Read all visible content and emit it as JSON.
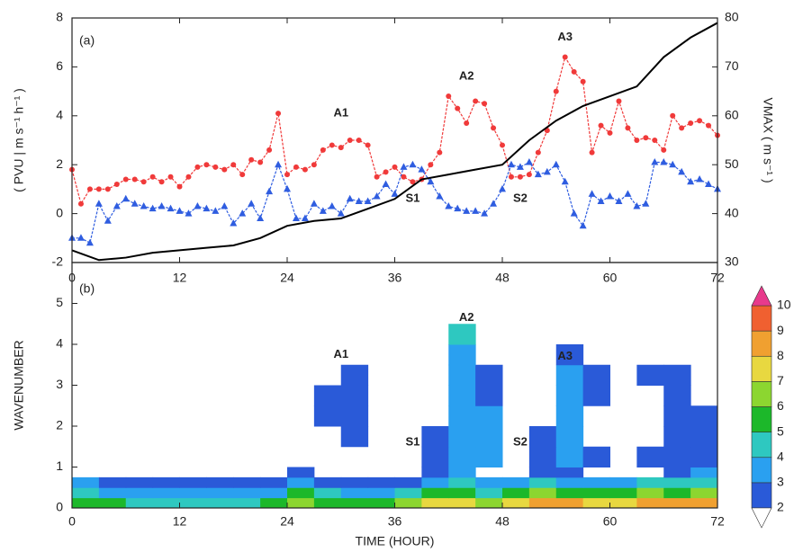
{
  "chart_data": [
    {
      "type": "line",
      "panel_label": "(a)",
      "ylabel": "( PVU | m s⁻¹ h⁻¹ )",
      "y2label": "VMAX  ( m s⁻¹ )",
      "x": [
        0,
        1,
        2,
        3,
        4,
        5,
        6,
        7,
        8,
        9,
        10,
        11,
        12,
        13,
        14,
        15,
        16,
        17,
        18,
        19,
        20,
        21,
        22,
        23,
        24,
        25,
        26,
        27,
        28,
        29,
        30,
        31,
        32,
        33,
        34,
        35,
        36,
        37,
        38,
        39,
        40,
        41,
        42,
        43,
        44,
        45,
        46,
        47,
        48,
        49,
        50,
        51,
        52,
        53,
        54,
        55,
        56,
        57,
        58,
        59,
        60,
        61,
        62,
        63,
        64,
        65,
        66,
        67,
        68,
        69,
        70,
        71,
        72
      ],
      "xlim": [
        0,
        72
      ],
      "xticks": [
        0,
        12,
        24,
        36,
        48,
        60,
        72
      ],
      "ylim": [
        -2,
        8
      ],
      "yticks": [
        -2,
        0,
        2,
        4,
        6,
        8
      ],
      "y2lim": [
        30,
        80
      ],
      "y2ticks": [
        30,
        40,
        50,
        60,
        70,
        80
      ],
      "series": [
        {
          "color": "#f03a3a",
          "marker": "circle",
          "values": [
            1.8,
            0.4,
            1.0,
            1.0,
            1.0,
            1.2,
            1.4,
            1.4,
            1.3,
            1.5,
            1.3,
            1.5,
            1.1,
            1.5,
            1.9,
            2.0,
            1.9,
            1.8,
            2.0,
            1.6,
            2.2,
            2.1,
            2.6,
            4.1,
            1.6,
            1.9,
            1.8,
            2.0,
            2.6,
            2.8,
            2.7,
            3.0,
            3.0,
            2.8,
            1.5,
            1.7,
            1.9,
            1.5,
            1.3,
            1.4,
            2.0,
            2.5,
            4.8,
            4.3,
            3.7,
            4.6,
            4.5,
            3.5,
            2.8,
            1.5,
            1.5,
            1.6,
            2.5,
            3.4,
            5.0,
            6.4,
            5.8,
            5.4,
            2.5,
            3.6,
            3.3,
            4.6,
            3.5,
            3.0,
            3.1,
            3.0,
            2.6,
            4.0,
            3.5,
            3.7,
            3.8,
            3.6,
            3.2
          ]
        },
        {
          "color": "#2f5de0",
          "marker": "triangle",
          "values": [
            -1.0,
            -1.0,
            -1.2,
            0.4,
            -0.3,
            0.3,
            0.6,
            0.4,
            0.3,
            0.2,
            0.3,
            0.2,
            0.1,
            0.0,
            0.3,
            0.2,
            0.1,
            0.3,
            -0.4,
            0.0,
            0.4,
            -0.2,
            0.9,
            2.0,
            1.0,
            -0.2,
            -0.2,
            0.4,
            0.1,
            0.3,
            0.0,
            0.6,
            0.5,
            0.5,
            0.7,
            1.2,
            0.8,
            1.9,
            2.0,
            1.8,
            1.3,
            0.7,
            0.3,
            0.2,
            0.1,
            0.1,
            0.0,
            0.4,
            1.0,
            2.0,
            1.9,
            2.1,
            1.6,
            1.7,
            2.0,
            1.3,
            0.0,
            -0.5,
            0.8,
            0.5,
            0.7,
            0.5,
            0.8,
            0.3,
            0.4,
            2.1,
            2.1,
            2.0,
            1.7,
            1.3,
            1.4,
            1.2,
            1.0
          ]
        },
        {
          "color": "#000000",
          "axis": "y2",
          "x": [
            0,
            3,
            6,
            9,
            12,
            15,
            18,
            21,
            24,
            27,
            30,
            33,
            36,
            39,
            42,
            45,
            48,
            51,
            54,
            57,
            60,
            63,
            66,
            69,
            72
          ],
          "values": [
            32.5,
            30.5,
            31,
            32,
            32.5,
            33,
            33.5,
            35,
            37.5,
            38.5,
            39,
            41,
            43,
            47,
            48,
            49,
            50,
            55,
            59,
            62,
            64,
            66,
            72,
            76,
            79
          ]
        }
      ],
      "annotations": [
        {
          "text": "A1",
          "x": 30,
          "y": 4.1
        },
        {
          "text": "A2",
          "x": 44,
          "y": 5.6
        },
        {
          "text": "A3",
          "x": 55,
          "y": 7.2
        },
        {
          "text": "S1",
          "x": 38,
          "y": 0.6
        },
        {
          "text": "S2",
          "x": 50,
          "y": 0.6
        }
      ]
    },
    {
      "type": "contour",
      "panel_label": "(b)",
      "xlabel": "TIME (HOUR)",
      "ylabel": "WAVENUMBER",
      "xlim": [
        0,
        72
      ],
      "xticks": [
        0,
        12,
        24,
        36,
        48,
        60,
        72
      ],
      "ylim": [
        0,
        6
      ],
      "yticks": [
        0,
        1,
        2,
        3,
        4,
        5
      ],
      "x_edges": [
        0,
        3,
        6,
        9,
        12,
        15,
        18,
        21,
        24,
        27,
        30,
        33,
        36,
        39,
        42,
        45,
        48,
        51,
        54,
        57,
        60,
        63,
        66,
        69,
        72
      ],
      "y_edges": [
        0,
        0.25,
        0.5,
        0.75,
        1,
        1.5,
        2,
        2.5,
        3,
        3.5,
        4,
        4.5
      ],
      "z": [
        [
          5,
          5,
          4,
          4,
          4,
          4,
          4,
          5,
          6,
          5,
          5,
          5,
          6,
          7,
          7,
          6,
          7,
          8,
          8,
          7,
          7,
          8,
          8,
          8
        ],
        [
          4,
          3,
          3,
          3,
          3,
          3,
          3,
          3,
          5,
          4,
          3,
          3,
          4,
          5,
          5,
          4,
          5,
          6,
          5,
          5,
          5,
          6,
          5,
          6
        ],
        [
          3,
          2,
          2,
          2,
          2,
          2,
          2,
          2,
          3,
          2,
          2,
          2,
          2,
          3,
          4,
          3,
          3,
          4,
          3,
          3,
          3,
          4,
          4,
          4
        ],
        [
          null,
          null,
          null,
          null,
          null,
          null,
          null,
          null,
          2,
          null,
          null,
          null,
          null,
          2,
          3,
          null,
          null,
          2,
          2,
          null,
          null,
          null,
          2,
          3
        ],
        [
          null,
          null,
          null,
          null,
          null,
          null,
          null,
          null,
          null,
          null,
          null,
          null,
          null,
          2,
          3,
          3,
          null,
          2,
          3,
          2,
          null,
          2,
          2,
          2
        ],
        [
          null,
          null,
          null,
          null,
          null,
          null,
          null,
          null,
          null,
          null,
          2,
          null,
          null,
          2,
          3,
          3,
          null,
          2,
          3,
          null,
          null,
          null,
          2,
          2
        ],
        [
          null,
          null,
          null,
          null,
          null,
          null,
          null,
          null,
          null,
          2,
          2,
          null,
          null,
          null,
          3,
          3,
          null,
          null,
          3,
          null,
          null,
          null,
          2,
          2
        ],
        [
          null,
          null,
          null,
          null,
          null,
          null,
          null,
          null,
          null,
          2,
          2,
          null,
          null,
          null,
          3,
          2,
          null,
          null,
          3,
          2,
          null,
          null,
          2,
          null
        ],
        [
          null,
          null,
          null,
          null,
          null,
          null,
          null,
          null,
          null,
          null,
          2,
          null,
          null,
          null,
          3,
          2,
          null,
          null,
          3,
          2,
          null,
          2,
          2,
          null
        ],
        [
          null,
          null,
          null,
          null,
          null,
          null,
          null,
          null,
          null,
          null,
          null,
          null,
          null,
          null,
          3,
          null,
          null,
          null,
          2,
          null,
          null,
          null,
          null,
          null
        ],
        [
          null,
          null,
          null,
          null,
          null,
          null,
          null,
          null,
          null,
          null,
          null,
          null,
          null,
          null,
          4,
          null,
          null,
          null,
          null,
          null,
          null,
          null,
          null,
          null
        ]
      ],
      "colorbar": {
        "levels": [
          2,
          3,
          4,
          5,
          6,
          7,
          8,
          9,
          10
        ],
        "colors": [
          "#2a5ad8",
          "#2aa0f0",
          "#2ec8c0",
          "#1cb82a",
          "#8cd630",
          "#e8d840",
          "#f0a030",
          "#f06030",
          "#e83a8c"
        ]
      },
      "annotations": [
        {
          "text": "A1",
          "x": 30,
          "y": 3.75
        },
        {
          "text": "A2",
          "x": 44,
          "y": 4.65
        },
        {
          "text": "A3",
          "x": 55,
          "y": 3.7
        },
        {
          "text": "S1",
          "x": 38,
          "y": 1.6
        },
        {
          "text": "S2",
          "x": 50,
          "y": 1.6
        }
      ]
    }
  ]
}
